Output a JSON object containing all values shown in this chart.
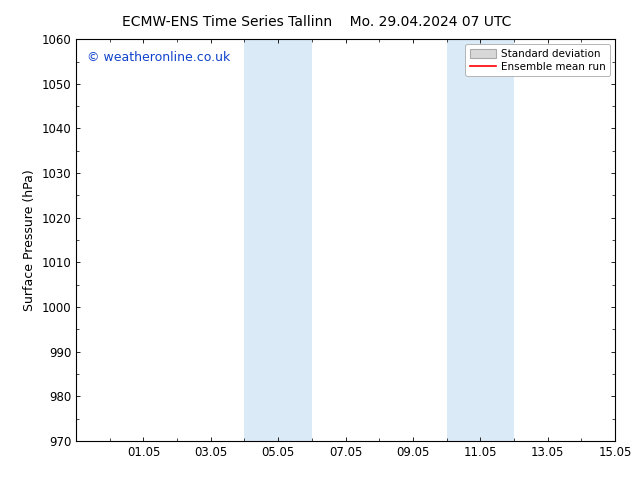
{
  "title_left": "ECMW-ENS Time Series Tallinn",
  "title_right": "Mo. 29.04.2024 07 UTC",
  "ylabel": "Surface Pressure (hPa)",
  "ylim": [
    970,
    1060
  ],
  "yticks": [
    970,
    980,
    990,
    1000,
    1010,
    1020,
    1030,
    1040,
    1050,
    1060
  ],
  "xlim": [
    0,
    16
  ],
  "xtick_labels": [
    "01.05",
    "03.05",
    "05.05",
    "07.05",
    "09.05",
    "11.05",
    "13.05",
    "15.05"
  ],
  "xtick_positions": [
    2,
    4,
    6,
    8,
    10,
    12,
    14,
    16
  ],
  "shaded_bands": [
    {
      "x_start": 5.0,
      "x_end": 7.0
    },
    {
      "x_start": 11.0,
      "x_end": 13.0
    }
  ],
  "shaded_color": "#daeaf7",
  "watermark_text": "© weatheronline.co.uk",
  "watermark_color": "#1144cc",
  "legend_std_dev_label": "Standard deviation",
  "legend_std_dev_facecolor": "#d8d8d8",
  "legend_std_dev_edgecolor": "#aaaaaa",
  "legend_mean_label": "Ensemble mean run",
  "legend_mean_color": "#ff0000",
  "background_color": "#ffffff",
  "spine_color": "#000000",
  "title_fontsize": 10,
  "axis_label_fontsize": 9,
  "tick_fontsize": 8.5,
  "watermark_fontsize": 9
}
